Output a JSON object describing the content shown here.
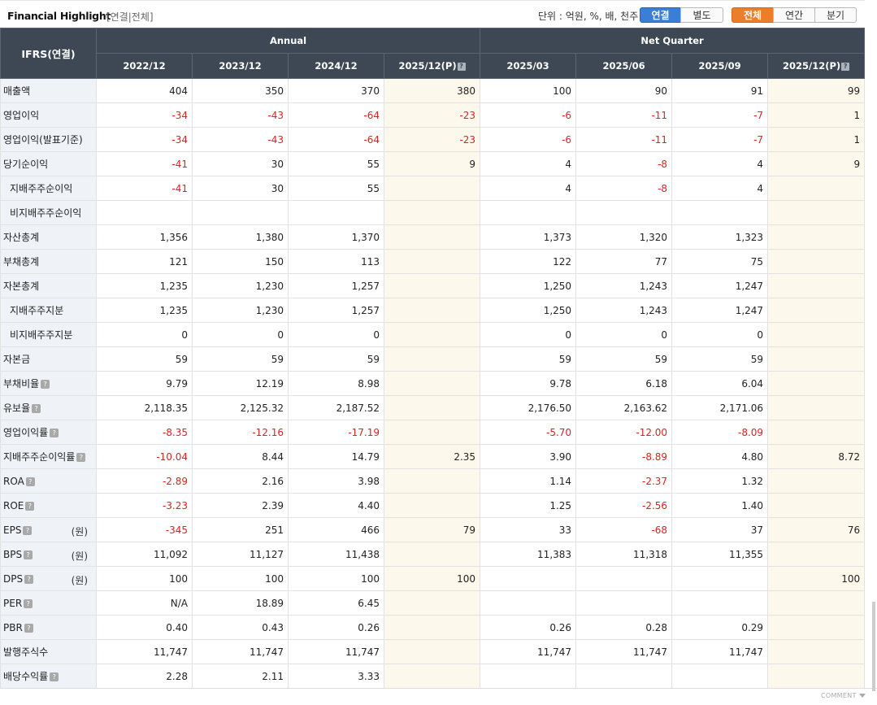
{
  "header": {
    "title": "Financial Highlight",
    "subtitle": "[연결|전체]",
    "unit": "단위 : 억원, %, 배, 천주",
    "toggle_basis": [
      "연결",
      "별도"
    ],
    "toggle_period": [
      "전체",
      "연간",
      "분기"
    ]
  },
  "table": {
    "corner_label": "IFRS(연결)",
    "group_annual": "Annual",
    "group_quarter": "Net Quarter",
    "columns": [
      "2022/12",
      "2023/12",
      "2024/12",
      "2025/12(P)",
      "2025/03",
      "2025/06",
      "2025/09",
      "2025/12(P)"
    ],
    "help_icon": "?",
    "won_unit": "(원)",
    "rows": [
      {
        "label": "매출액",
        "sub": false,
        "help": false,
        "unit": false,
        "values": [
          "404",
          "350",
          "370",
          "380",
          "100",
          "90",
          "91",
          "99"
        ]
      },
      {
        "label": "영업이익",
        "sub": false,
        "help": false,
        "unit": false,
        "values": [
          "-34",
          "-43",
          "-64",
          "-23",
          "-6",
          "-11",
          "-7",
          "1"
        ]
      },
      {
        "label": "영업이익(발표기준)",
        "sub": false,
        "help": false,
        "unit": false,
        "values": [
          "-34",
          "-43",
          "-64",
          "-23",
          "-6",
          "-11",
          "-7",
          "1"
        ]
      },
      {
        "label": "당기순이익",
        "sub": false,
        "help": false,
        "unit": false,
        "values": [
          "-41",
          "30",
          "55",
          "9",
          "4",
          "-8",
          "4",
          "9"
        ]
      },
      {
        "label": "지배주주순이익",
        "sub": true,
        "help": false,
        "unit": false,
        "values": [
          "-41",
          "30",
          "55",
          "",
          "4",
          "-8",
          "4",
          ""
        ]
      },
      {
        "label": "비지배주주순이익",
        "sub": true,
        "help": false,
        "unit": false,
        "values": [
          "",
          "",
          "",
          "",
          "",
          "",
          "",
          ""
        ]
      },
      {
        "label": "자산총계",
        "sub": false,
        "help": false,
        "unit": false,
        "values": [
          "1,356",
          "1,380",
          "1,370",
          "",
          "1,373",
          "1,320",
          "1,323",
          ""
        ]
      },
      {
        "label": "부채총계",
        "sub": false,
        "help": false,
        "unit": false,
        "values": [
          "121",
          "150",
          "113",
          "",
          "122",
          "77",
          "75",
          ""
        ]
      },
      {
        "label": "자본총계",
        "sub": false,
        "help": false,
        "unit": false,
        "values": [
          "1,235",
          "1,230",
          "1,257",
          "",
          "1,250",
          "1,243",
          "1,247",
          ""
        ]
      },
      {
        "label": "지배주주지분",
        "sub": true,
        "help": false,
        "unit": false,
        "values": [
          "1,235",
          "1,230",
          "1,257",
          "",
          "1,250",
          "1,243",
          "1,247",
          ""
        ]
      },
      {
        "label": "비지배주주지분",
        "sub": true,
        "help": false,
        "unit": false,
        "values": [
          "0",
          "0",
          "0",
          "",
          "0",
          "0",
          "0",
          ""
        ]
      },
      {
        "label": "자본금",
        "sub": false,
        "help": false,
        "unit": false,
        "values": [
          "59",
          "59",
          "59",
          "",
          "59",
          "59",
          "59",
          ""
        ]
      },
      {
        "label": "부채비율",
        "sub": false,
        "help": true,
        "unit": false,
        "values": [
          "9.79",
          "12.19",
          "8.98",
          "",
          "9.78",
          "6.18",
          "6.04",
          ""
        ]
      },
      {
        "label": "유보율",
        "sub": false,
        "help": true,
        "unit": false,
        "values": [
          "2,118.35",
          "2,125.32",
          "2,187.52",
          "",
          "2,176.50",
          "2,163.62",
          "2,171.06",
          ""
        ]
      },
      {
        "label": "영업이익률",
        "sub": false,
        "help": true,
        "unit": false,
        "values": [
          "-8.35",
          "-12.16",
          "-17.19",
          "",
          "-5.70",
          "-12.00",
          "-8.09",
          ""
        ]
      },
      {
        "label": "지배주주순이익률",
        "sub": false,
        "help": true,
        "unit": false,
        "values": [
          "-10.04",
          "8.44",
          "14.79",
          "2.35",
          "3.90",
          "-8.89",
          "4.80",
          "8.72"
        ]
      },
      {
        "label": "ROA",
        "sub": false,
        "help": true,
        "unit": false,
        "values": [
          "-2.89",
          "2.16",
          "3.98",
          "",
          "1.14",
          "-2.37",
          "1.32",
          ""
        ]
      },
      {
        "label": "ROE",
        "sub": false,
        "help": true,
        "unit": false,
        "values": [
          "-3.23",
          "2.39",
          "4.40",
          "",
          "1.25",
          "-2.56",
          "1.40",
          ""
        ]
      },
      {
        "label": "EPS",
        "sub": false,
        "help": true,
        "unit": true,
        "values": [
          "-345",
          "251",
          "466",
          "79",
          "33",
          "-68",
          "37",
          "76"
        ]
      },
      {
        "label": "BPS",
        "sub": false,
        "help": true,
        "unit": true,
        "values": [
          "11,092",
          "11,127",
          "11,438",
          "",
          "11,383",
          "11,318",
          "11,355",
          ""
        ]
      },
      {
        "label": "DPS",
        "sub": false,
        "help": true,
        "unit": true,
        "values": [
          "100",
          "100",
          "100",
          "100",
          "",
          "",
          "",
          "100"
        ]
      },
      {
        "label": "PER",
        "sub": false,
        "help": true,
        "unit": false,
        "values": [
          "N/A",
          "18.89",
          "6.45",
          "",
          "",
          "",
          "",
          ""
        ]
      },
      {
        "label": "PBR",
        "sub": false,
        "help": true,
        "unit": false,
        "values": [
          "0.40",
          "0.43",
          "0.26",
          "",
          "0.26",
          "0.28",
          "0.29",
          ""
        ]
      },
      {
        "label": "발행주식수",
        "sub": false,
        "help": false,
        "unit": false,
        "values": [
          "11,747",
          "11,747",
          "11,747",
          "",
          "11,747",
          "11,747",
          "11,747",
          ""
        ]
      },
      {
        "label": "배당수익률",
        "sub": false,
        "help": true,
        "unit": false,
        "values": [
          "2.28",
          "2.11",
          "3.33",
          "",
          "",
          "",
          "",
          ""
        ]
      }
    ]
  },
  "footer": {
    "comment_label": "COMMENT"
  }
}
